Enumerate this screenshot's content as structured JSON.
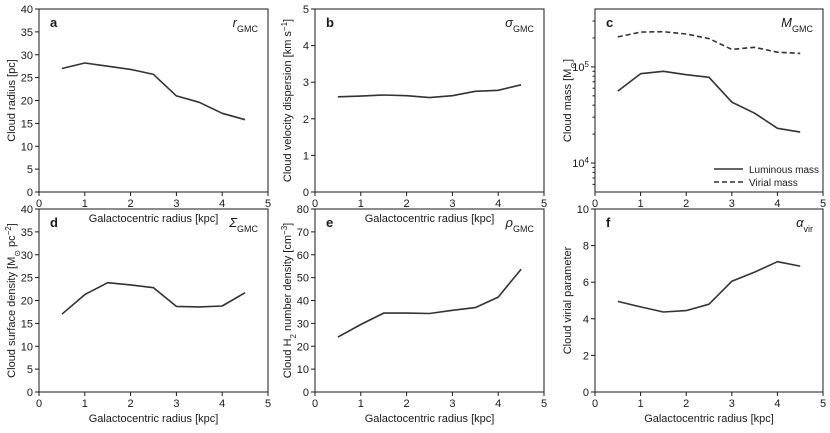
{
  "chart_data": [
    {
      "type": "line",
      "letter": "a",
      "symbol": {
        "main": "r",
        "sub": "GMC"
      },
      "xlabel": "Galactocentric radius [kpc]",
      "ylabel": [
        {
          "t": "Cloud radius [pc]"
        }
      ],
      "xlim": [
        0,
        5
      ],
      "ylim": [
        0,
        40
      ],
      "yscale": "linear",
      "xticks": [
        0,
        1,
        2,
        3,
        4,
        5
      ],
      "yticks": [
        0,
        5,
        10,
        15,
        20,
        25,
        30,
        35,
        40
      ],
      "series": [
        {
          "name": "",
          "style": "solid",
          "x": [
            0.5,
            1.0,
            1.5,
            2.0,
            2.5,
            3.0,
            3.5,
            4.0,
            4.5
          ],
          "y": [
            27.0,
            28.2,
            27.5,
            26.8,
            25.7,
            21.0,
            19.6,
            17.2,
            15.8
          ]
        }
      ]
    },
    {
      "type": "line",
      "letter": "b",
      "symbol": {
        "main": "σ",
        "sub": "GMC"
      },
      "xlabel": "Galactocentric radius [kpc]",
      "ylabel": [
        {
          "t": "Cloud velocity dispersion [km s"
        },
        {
          "t": "−1",
          "sup": true
        },
        {
          "t": "]"
        }
      ],
      "xlim": [
        0,
        5
      ],
      "ylim": [
        0,
        5
      ],
      "yscale": "linear",
      "xticks": [
        0,
        1,
        2,
        3,
        4,
        5
      ],
      "yticks": [
        0,
        1,
        2,
        3,
        4,
        5
      ],
      "series": [
        {
          "name": "",
          "style": "solid",
          "x": [
            0.5,
            1.0,
            1.5,
            2.0,
            2.5,
            3.0,
            3.5,
            4.0,
            4.5
          ],
          "y": [
            2.6,
            2.62,
            2.65,
            2.63,
            2.58,
            2.63,
            2.75,
            2.78,
            2.93
          ]
        }
      ]
    },
    {
      "type": "line",
      "letter": "c",
      "symbol": {
        "main": "M",
        "sub": "GMC"
      },
      "xlabel": "",
      "ylabel": [
        {
          "t": "Cloud mass [M"
        },
        {
          "t": "⊙",
          "sub": true
        },
        {
          "t": "]"
        }
      ],
      "xlim": [
        0,
        5
      ],
      "ylim": [
        5000,
        400000
      ],
      "yscale": "log",
      "xticks": [
        0,
        1,
        2,
        3,
        4,
        5
      ],
      "ymajor": [
        {
          "v": 10000,
          "base": "10",
          "exp": "4"
        },
        {
          "v": 100000,
          "base": "10",
          "exp": "5"
        }
      ],
      "legend": {
        "position": "lower-right"
      },
      "series": [
        {
          "name": "Luminous mass",
          "style": "solid",
          "x": [
            0.5,
            1.0,
            1.5,
            2.0,
            2.5,
            3.0,
            3.5,
            4.0,
            4.5
          ],
          "y": [
            56000,
            85000,
            90000,
            83000,
            78000,
            43000,
            33000,
            23000,
            21000
          ]
        },
        {
          "name": "Virial mass",
          "style": "dashed",
          "x": [
            0.5,
            1.0,
            1.5,
            2.0,
            2.5,
            3.0,
            3.5,
            4.0,
            4.5
          ],
          "y": [
            205000,
            230000,
            232000,
            220000,
            197000,
            152000,
            160000,
            142000,
            138000
          ]
        }
      ]
    },
    {
      "type": "line",
      "letter": "d",
      "symbol": {
        "main": "Σ",
        "sub": "GMC"
      },
      "xlabel": "Galactocentric radius [kpc]",
      "ylabel": [
        {
          "t": "Cloud surface density [M"
        },
        {
          "t": "⊙",
          "sub": true
        },
        {
          "t": " pc"
        },
        {
          "t": "−2",
          "sup": true
        },
        {
          "t": "]"
        }
      ],
      "xlim": [
        0,
        5
      ],
      "ylim": [
        0,
        40
      ],
      "yscale": "linear",
      "xticks": [
        0,
        1,
        2,
        3,
        4,
        5
      ],
      "yticks": [
        0,
        5,
        10,
        15,
        20,
        25,
        30,
        35,
        40
      ],
      "series": [
        {
          "name": "",
          "style": "solid",
          "x": [
            0.5,
            1.0,
            1.5,
            2.0,
            2.5,
            3.0,
            3.5,
            4.0,
            4.5
          ],
          "y": [
            17.0,
            21.3,
            23.9,
            23.4,
            22.8,
            18.7,
            18.6,
            18.8,
            21.7
          ]
        }
      ]
    },
    {
      "type": "line",
      "letter": "e",
      "symbol": {
        "main": "ρ",
        "sub": "GMC"
      },
      "xlabel": "Galactocentric radius [kpc]",
      "ylabel": [
        {
          "t": "Cloud H"
        },
        {
          "t": "2",
          "sub": true
        },
        {
          "t": " number density [cm"
        },
        {
          "t": "−3",
          "sup": true
        },
        {
          "t": "]"
        }
      ],
      "xlim": [
        0,
        5
      ],
      "ylim": [
        0,
        80
      ],
      "yscale": "linear",
      "xticks": [
        0,
        1,
        2,
        3,
        4,
        5
      ],
      "yticks": [
        0,
        10,
        20,
        30,
        40,
        50,
        60,
        70,
        80
      ],
      "series": [
        {
          "name": "",
          "style": "solid",
          "x": [
            0.5,
            1.0,
            1.5,
            2.0,
            2.5,
            3.0,
            3.5,
            4.0,
            4.5
          ],
          "y": [
            24.0,
            29.5,
            34.5,
            34.5,
            34.3,
            35.7,
            36.9,
            41.5,
            53.7
          ]
        }
      ]
    },
    {
      "type": "line",
      "letter": "f",
      "symbol": {
        "main": "α",
        "sub": "vir"
      },
      "xlabel": "Galactocentric radius [kpc]",
      "ylabel": [
        {
          "t": "Cloud virial parameter"
        }
      ],
      "xlim": [
        0,
        5
      ],
      "ylim": [
        0,
        10
      ],
      "yscale": "linear",
      "xticks": [
        0,
        1,
        2,
        3,
        4,
        5
      ],
      "yticks": [
        0,
        2,
        4,
        6,
        8,
        10
      ],
      "series": [
        {
          "name": "",
          "style": "solid",
          "x": [
            0.5,
            1.0,
            1.5,
            2.0,
            2.5,
            3.0,
            3.5,
            4.0,
            4.5
          ],
          "y": [
            4.95,
            4.65,
            4.37,
            4.45,
            4.8,
            6.05,
            6.55,
            7.12,
            6.88
          ]
        }
      ]
    }
  ]
}
